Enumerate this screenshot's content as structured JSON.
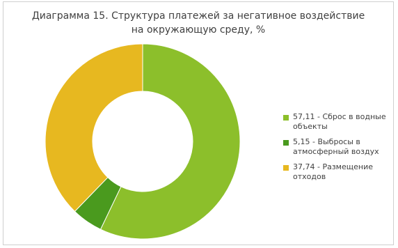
{
  "chart_data": {
    "type": "pie",
    "title_line_1": "Диаграмма 15. Структура платежей за негативное воздействие",
    "title_line_2": "на окружающую среду, %",
    "donut": true,
    "legend_position": "right",
    "series": [
      {
        "name": "57,11 - Сброс в водные объекты",
        "value": 57.11,
        "color": "#8cbf2b"
      },
      {
        "name": "5,15 - Выбросы в атмосферный воздух",
        "value": 5.15,
        "color": "#4a9a1e"
      },
      {
        "name": "37,74 - Размещение отходов",
        "value": 37.74,
        "color": "#e7b820"
      }
    ]
  }
}
